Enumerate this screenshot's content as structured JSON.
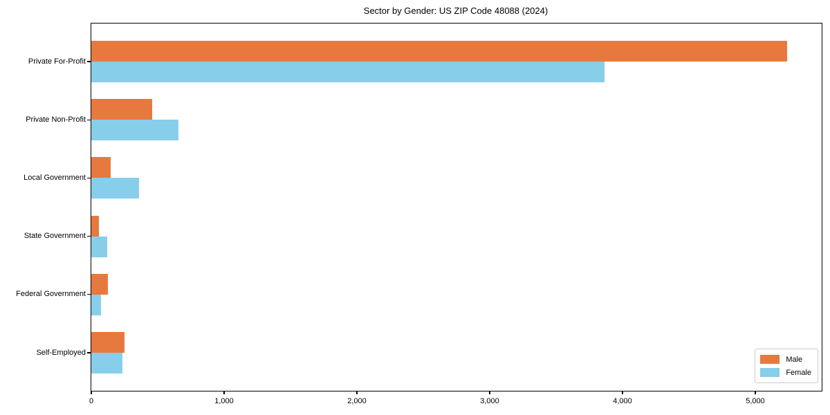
{
  "chart_data": {
    "type": "bar",
    "orientation": "horizontal",
    "title": "Sector by Gender: US ZIP Code 48088 (2024)",
    "categories": [
      "Private For-Profit",
      "Private Non-Profit",
      "Local Government",
      "State Government",
      "Federal Government",
      "Self-Employed"
    ],
    "series": [
      {
        "name": "Male",
        "color": "#e8793e",
        "values": [
          5237,
          459,
          148,
          56,
          125,
          252
        ]
      },
      {
        "name": "Female",
        "color": "#87ceeb",
        "values": [
          3866,
          655,
          360,
          121,
          73,
          233
        ]
      }
    ],
    "xlabel": "",
    "ylabel": "",
    "xlim": [
      0,
      5500
    ],
    "xticks": [
      0,
      1000,
      2000,
      3000,
      4000,
      5000
    ],
    "xtick_labels": [
      "0",
      "1,000",
      "2,000",
      "3,000",
      "4,000",
      "5,000"
    ],
    "legend": {
      "position": "lower right"
    },
    "grid": false,
    "axis_color": "#000000",
    "background_color": "#ffffff"
  }
}
